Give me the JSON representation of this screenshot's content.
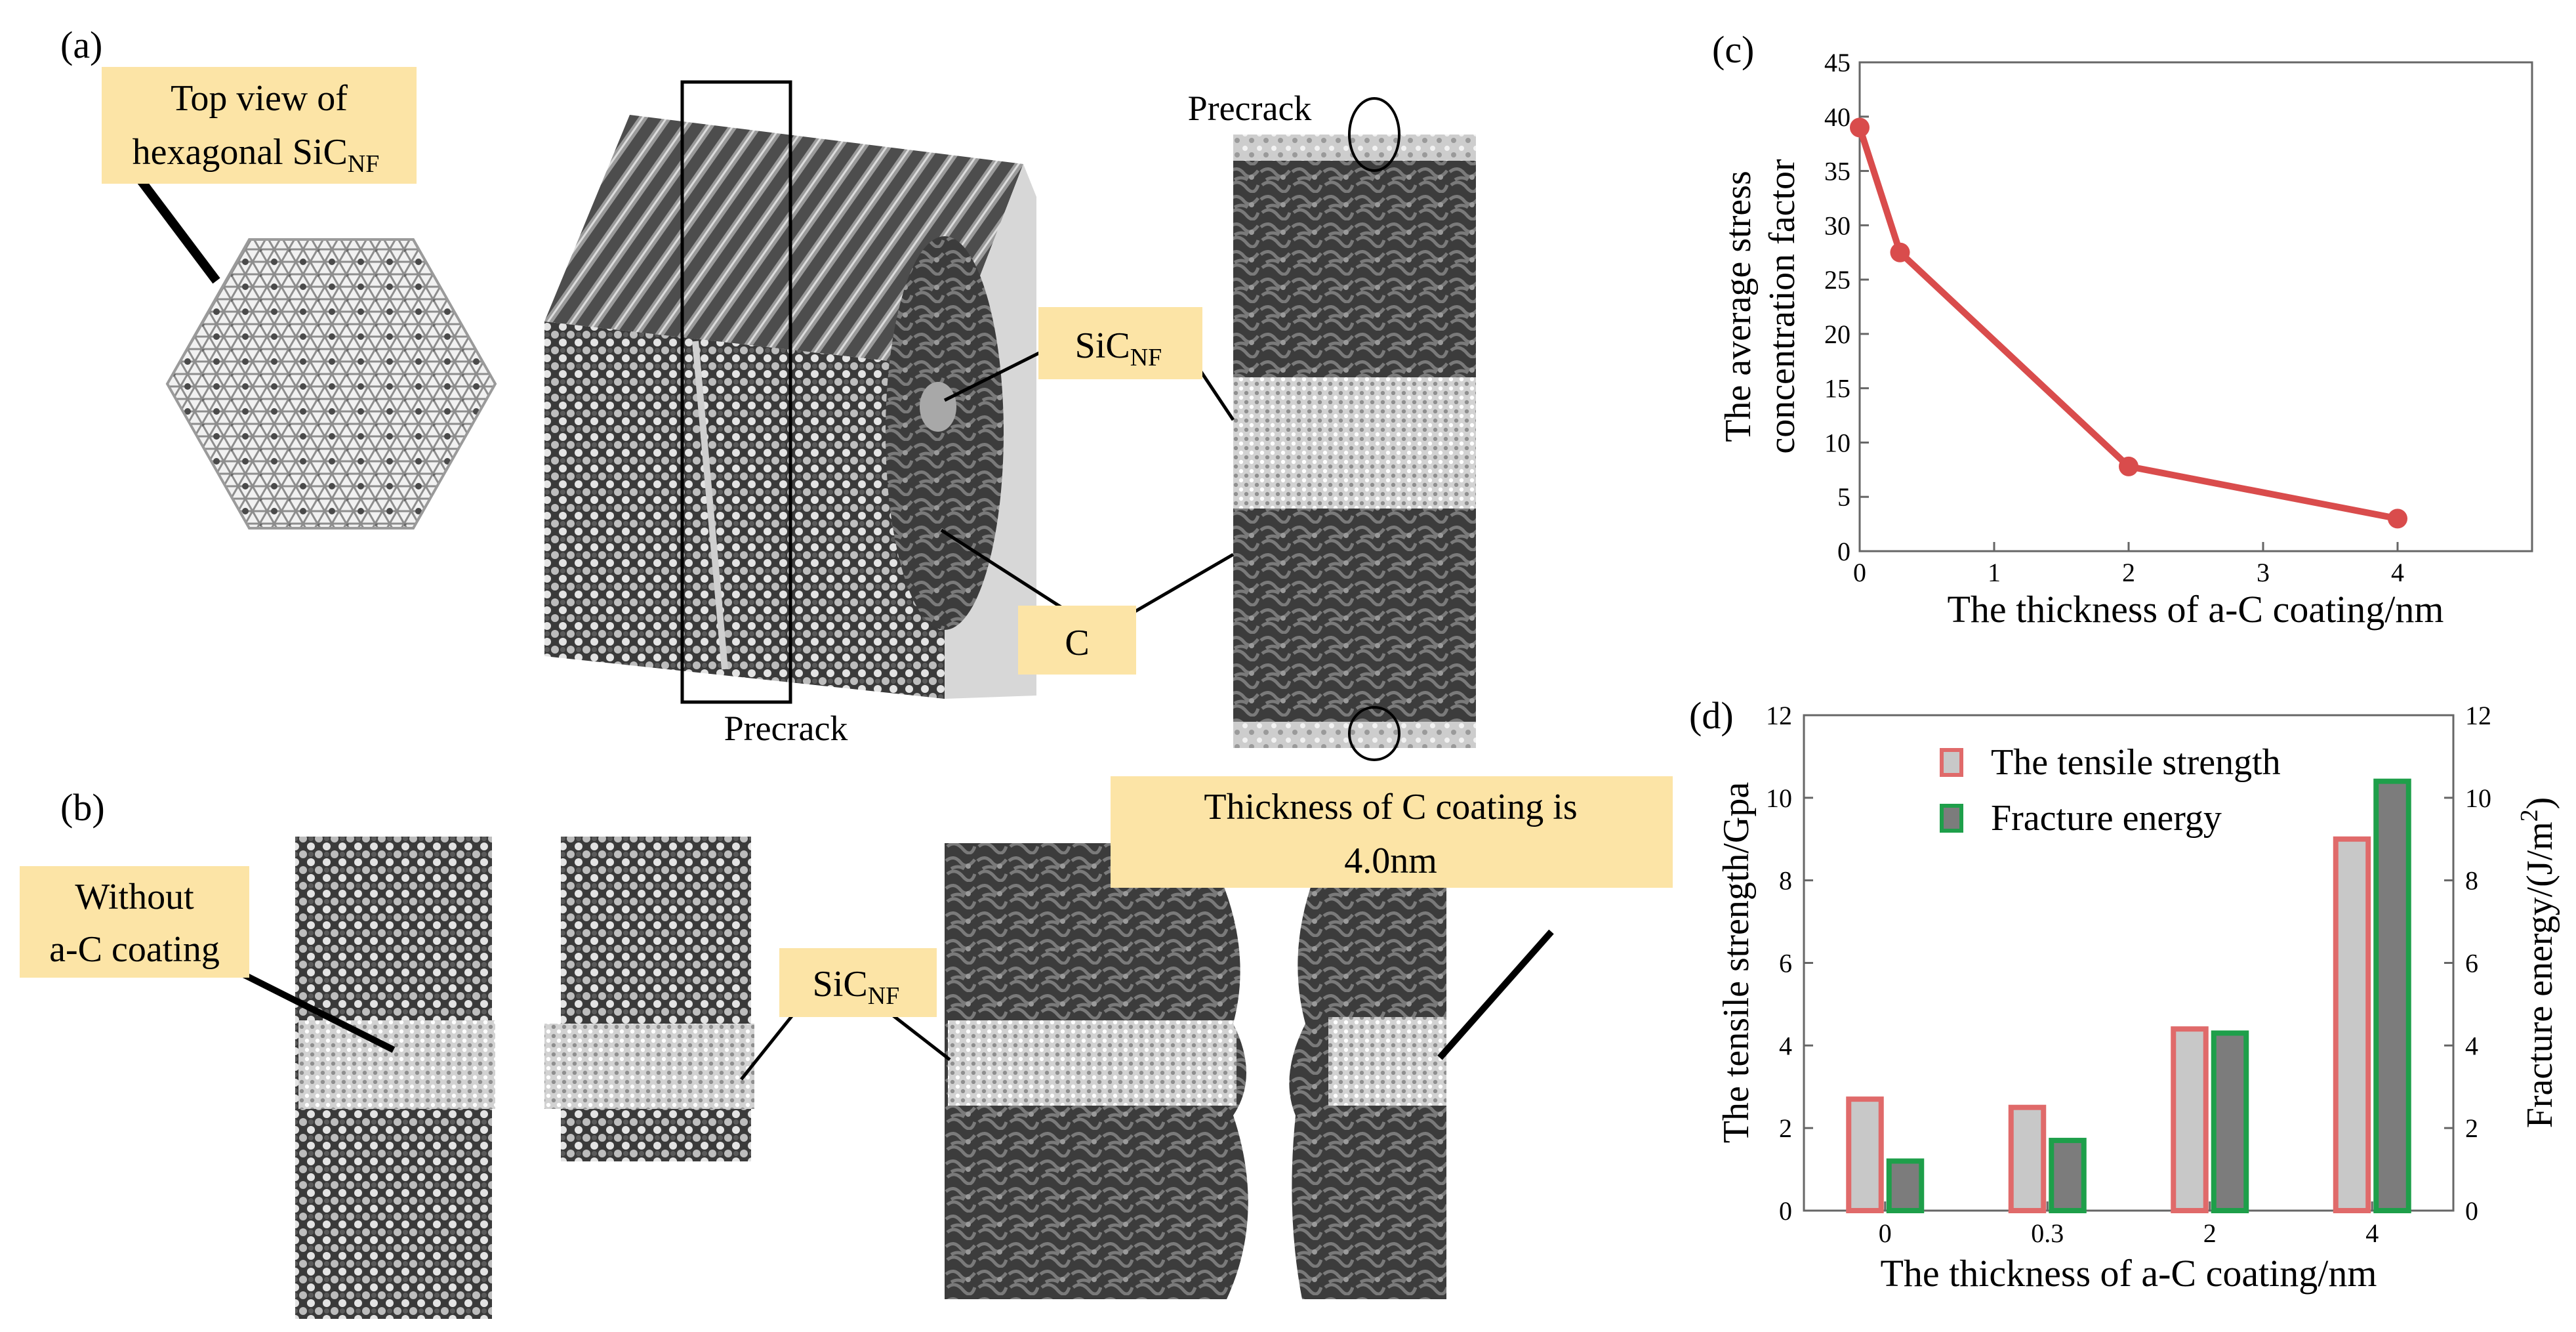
{
  "panels": {
    "a": {
      "letter": "(a)",
      "callout_top_view_l1": "Top  view  of",
      "callout_top_view_l2": "hexagonal SiC",
      "callout_top_view_sub": "NF",
      "label_sicnf": "SiC",
      "label_sicnf_sub": "NF",
      "label_c": "C",
      "precrack_top": "Precrack",
      "precrack_bottom": "Precrack"
    },
    "b": {
      "letter": "(b)",
      "callout_without_l1": "Without",
      "callout_without_l2": "a-C coating",
      "label_sicnf": "SiC",
      "label_sicnf_sub": "NF",
      "callout_thickness_l1": "Thickness  of  C coating is",
      "callout_thickness_l2": "4.0nm"
    },
    "c": {
      "letter": "(c)"
    },
    "d": {
      "letter": "(d)"
    }
  },
  "colors": {
    "callout_fill": "#fce4a6",
    "line_series": "#d94c4c",
    "bar_strength_fill": "#c8c8c8",
    "bar_strength_edge": "#e06a6a",
    "bar_energy_fill": "#7c7c7c",
    "bar_energy_edge": "#1e9f4a"
  },
  "chart_data": [
    {
      "type": "line",
      "panel": "c",
      "xlabel": "The thickness of a-C coating/nm",
      "ylabel_l1": "The average stress",
      "ylabel_l2": "concentration factor",
      "xlim": [
        0,
        5
      ],
      "ylim": [
        0,
        45
      ],
      "xticks": [
        0,
        1,
        2,
        3,
        4
      ],
      "yticks": [
        0,
        5,
        10,
        15,
        20,
        25,
        30,
        35,
        40,
        45
      ],
      "grid": false,
      "series": [
        {
          "x": [
            0,
            0.3,
            2,
            4
          ],
          "y": [
            39,
            27.5,
            7.8,
            3
          ]
        }
      ]
    },
    {
      "type": "bar",
      "panel": "d",
      "categories": [
        "0",
        "0.3",
        "2",
        "4"
      ],
      "xlabel": "The thickness of a-C coating/nm",
      "ylabel_left": "The tensile strength/Gpa",
      "ylabel_right": "Fracture energy/(J/m",
      "ylabel_right_sup": "2",
      "ylabel_right_close": ")",
      "ylim_left": [
        0,
        12
      ],
      "ylim_right": [
        0,
        12
      ],
      "yticks": [
        0,
        2,
        4,
        6,
        8,
        10,
        12
      ],
      "legend_position": "top-right",
      "series": [
        {
          "name": "The tensile strength",
          "axis": "left",
          "values": [
            2.7,
            2.5,
            4.4,
            9.0
          ]
        },
        {
          "name": "Fracture energy",
          "axis": "right",
          "values": [
            1.2,
            1.7,
            4.3,
            10.4
          ]
        }
      ]
    }
  ]
}
